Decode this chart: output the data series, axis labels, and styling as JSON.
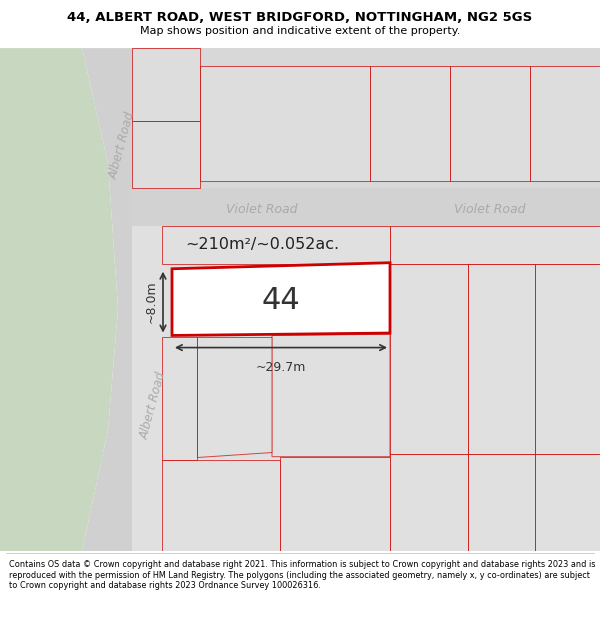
{
  "title_line1": "44, ALBERT ROAD, WEST BRIDGFORD, NOTTINGHAM, NG2 5GS",
  "title_line2": "Map shows position and indicative extent of the property.",
  "footer_text": "Contains OS data © Crown copyright and database right 2021. This information is subject to Crown copyright and database rights 2023 and is reproduced with the permission of HM Land Registry. The polygons (including the associated geometry, namely x, y co-ordinates) are subject to Crown copyright and database rights 2023 Ordnance Survey 100026316.",
  "map_bg_color": "#e8e8e8",
  "road_color": "#d0d0d0",
  "plot_outline_color": "#cc0000",
  "green_area_color": "#c8d8c0",
  "main_plot_number": "44",
  "area_label": "~210m²/~0.052ac.",
  "width_label": "~29.7m",
  "height_label": "~8.0m",
  "violet_road_label": "Violet Road",
  "albert_road_label": "Albert Road"
}
